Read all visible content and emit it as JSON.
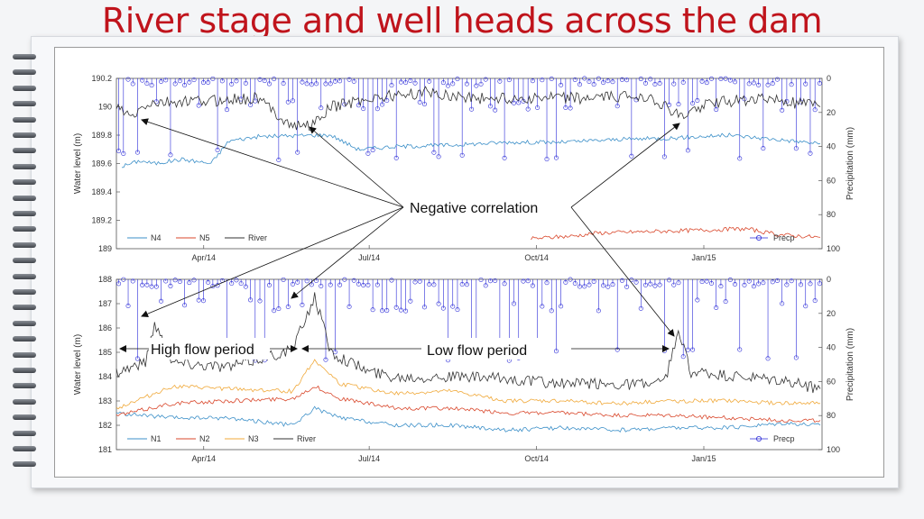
{
  "slide": {
    "title": "River stage and well heads across the dam"
  },
  "annotations": {
    "negative_correlation": "Negative correlation",
    "high_flow": "High flow period",
    "low_flow": "Low flow period"
  },
  "colors": {
    "N1": "#3b8fc8",
    "N2": "#d9472b",
    "N3": "#f0a93a",
    "N4": "#3b8fc8",
    "N5": "#d9472b",
    "River": "#333333",
    "Precp": "#2a2ad8",
    "title": "#c0141c"
  },
  "chart_data": [
    {
      "type": "line",
      "x_range": [
        "2014-02-12",
        "2015-03-07"
      ],
      "x_ticks": [
        {
          "date": "2014-04-01",
          "label": "Apr/14"
        },
        {
          "date": "2014-07-01",
          "label": "Jul/14"
        },
        {
          "date": "2014-10-01",
          "label": "Oct/14"
        },
        {
          "date": "2015-01-01",
          "label": "Jan/15"
        }
      ],
      "ylabel": "Water level (m)",
      "ylim": [
        189,
        190.2
      ],
      "yticks": [
        "189",
        "189.2",
        "189.4",
        "189.6",
        "189.8",
        "190",
        "190.2"
      ],
      "y2label": "Precipitation (mm)",
      "y2lim": [
        0,
        100
      ],
      "y2ticks": [
        "0",
        "20",
        "40",
        "60",
        "80",
        "100"
      ],
      "y2_reversed": true,
      "legend_left": [
        "N4",
        "N5",
        "River"
      ],
      "legend_right": "Precp",
      "series": [
        {
          "name": "N4",
          "points": [
            [
              "2014-02-15",
              189.58
            ],
            [
              "2014-02-25",
              189.62
            ],
            [
              "2014-03-05",
              189.6
            ],
            [
              "2014-03-20",
              189.63
            ],
            [
              "2014-04-05",
              189.6
            ],
            [
              "2014-04-15",
              189.76
            ],
            [
              "2014-05-01",
              189.79
            ],
            [
              "2014-06-01",
              189.8
            ],
            [
              "2014-06-10",
              189.8
            ],
            [
              "2014-06-25",
              189.7
            ],
            [
              "2014-07-15",
              189.72
            ],
            [
              "2014-08-15",
              189.73
            ],
            [
              "2014-09-15",
              189.75
            ],
            [
              "2014-10-15",
              189.75
            ],
            [
              "2014-11-15",
              189.77
            ],
            [
              "2014-12-15",
              189.78
            ],
            [
              "2015-01-15",
              189.8
            ],
            [
              "2015-02-10",
              189.77
            ],
            [
              "2015-03-06",
              189.74
            ]
          ]
        },
        {
          "name": "N5",
          "points": [
            [
              "2014-09-28",
              189.07
            ],
            [
              "2014-10-10",
              189.08
            ],
            [
              "2014-10-22",
              189.09
            ],
            [
              "2014-11-03",
              189.11
            ],
            [
              "2015-01-25",
              189.14
            ],
            [
              "2015-02-10",
              189.1
            ],
            [
              "2015-02-22",
              189.09
            ],
            [
              "2015-03-06",
              189.08
            ]
          ]
        },
        {
          "name": "River",
          "points": [
            [
              "2014-02-12",
              190.0
            ],
            [
              "2014-02-20",
              189.92
            ],
            [
              "2014-03-01",
              190.02
            ],
            [
              "2014-04-01",
              190.04
            ],
            [
              "2014-05-01",
              190.06
            ],
            [
              "2014-05-20",
              189.86
            ],
            [
              "2014-06-01",
              189.88
            ],
            [
              "2014-06-10",
              190.0
            ],
            [
              "2014-07-01",
              190.06
            ],
            [
              "2014-08-01",
              190.1
            ],
            [
              "2014-09-01",
              190.06
            ],
            [
              "2014-10-01",
              190.06
            ],
            [
              "2014-11-01",
              190.06
            ],
            [
              "2014-12-01",
              190.08
            ],
            [
              "2014-12-20",
              189.92
            ],
            [
              "2015-01-01",
              190.02
            ],
            [
              "2015-02-01",
              190.06
            ],
            [
              "2015-03-06",
              190.0
            ]
          ]
        }
      ]
    },
    {
      "type": "line",
      "x_range": [
        "2014-02-12",
        "2015-03-07"
      ],
      "x_ticks": [
        {
          "date": "2014-04-01",
          "label": "Apr/14"
        },
        {
          "date": "2014-07-01",
          "label": "Jul/14"
        },
        {
          "date": "2014-10-01",
          "label": "Oct/14"
        },
        {
          "date": "2015-01-01",
          "label": "Jan/15"
        }
      ],
      "ylabel": "Water level (m)",
      "ylim": [
        181,
        188
      ],
      "yticks": [
        "181",
        "182",
        "183",
        "184",
        "185",
        "186",
        "187",
        "188"
      ],
      "y2label": "Precipitation (mm)",
      "y2lim": [
        0,
        100
      ],
      "y2ticks": [
        "0",
        "20",
        "40",
        "60",
        "80",
        "100"
      ],
      "y2_reversed": true,
      "legend_left": [
        "N1",
        "N2",
        "N3",
        "River"
      ],
      "legend_right": "Precp",
      "series": [
        {
          "name": "N1",
          "points": [
            [
              "2014-02-12",
              182.5
            ],
            [
              "2014-03-15",
              182.3
            ],
            [
              "2014-04-15",
              182.3
            ],
            [
              "2014-05-20",
              182.0
            ],
            [
              "2014-06-01",
              182.7
            ],
            [
              "2014-06-15",
              182.3
            ],
            [
              "2014-07-15",
              182.0
            ],
            [
              "2014-08-15",
              182.0
            ],
            [
              "2014-09-15",
              181.8
            ],
            [
              "2014-10-15",
              181.9
            ],
            [
              "2014-11-15",
              181.8
            ],
            [
              "2014-12-15",
              181.9
            ],
            [
              "2015-01-15",
              181.9
            ],
            [
              "2015-02-15",
              182.1
            ],
            [
              "2015-03-06",
              182.0
            ]
          ]
        },
        {
          "name": "N2",
          "points": [
            [
              "2014-02-12",
              182.4
            ],
            [
              "2014-03-15",
              182.9
            ],
            [
              "2014-04-15",
              183.0
            ],
            [
              "2014-05-20",
              183.1
            ],
            [
              "2014-06-01",
              183.6
            ],
            [
              "2014-06-15",
              183.1
            ],
            [
              "2014-07-15",
              182.7
            ],
            [
              "2014-08-15",
              182.7
            ],
            [
              "2014-09-15",
              182.5
            ],
            [
              "2014-10-15",
              182.5
            ],
            [
              "2014-11-15",
              182.4
            ],
            [
              "2014-12-15",
              182.4
            ],
            [
              "2015-01-15",
              182.3
            ],
            [
              "2015-02-15",
              182.2
            ],
            [
              "2015-03-06",
              182.2
            ]
          ]
        },
        {
          "name": "N3",
          "points": [
            [
              "2014-02-12",
              182.7
            ],
            [
              "2014-03-15",
              183.6
            ],
            [
              "2014-04-15",
              183.5
            ],
            [
              "2014-05-20",
              183.4
            ],
            [
              "2014-06-01",
              184.7
            ],
            [
              "2014-06-15",
              183.7
            ],
            [
              "2014-07-15",
              183.3
            ],
            [
              "2014-08-15",
              183.4
            ],
            [
              "2014-09-15",
              183.0
            ],
            [
              "2014-10-15",
              183.0
            ],
            [
              "2014-11-15",
              182.9
            ],
            [
              "2014-12-15",
              183.0
            ],
            [
              "2015-01-15",
              183.0
            ],
            [
              "2015-02-15",
              182.9
            ],
            [
              "2015-03-06",
              182.9
            ]
          ]
        },
        {
          "name": "River",
          "points": [
            [
              "2014-02-12",
              184.2
            ],
            [
              "2014-02-28",
              184.6
            ],
            [
              "2014-03-05",
              186.2
            ],
            [
              "2014-03-15",
              184.6
            ],
            [
              "2014-04-15",
              184.4
            ],
            [
              "2014-05-20",
              185.1
            ],
            [
              "2014-06-01",
              187.3
            ],
            [
              "2014-06-10",
              185.0
            ],
            [
              "2014-07-01",
              184.2
            ],
            [
              "2014-07-15",
              184.0
            ],
            [
              "2014-08-15",
              184.0
            ],
            [
              "2014-09-15",
              183.9
            ],
            [
              "2014-10-15",
              183.7
            ],
            [
              "2014-11-15",
              183.7
            ],
            [
              "2014-12-10",
              183.7
            ],
            [
              "2014-12-18",
              185.8
            ],
            [
              "2014-12-25",
              184.2
            ],
            [
              "2015-01-15",
              184.0
            ],
            [
              "2015-02-15",
              183.8
            ],
            [
              "2015-03-06",
              183.5
            ]
          ]
        }
      ]
    }
  ]
}
